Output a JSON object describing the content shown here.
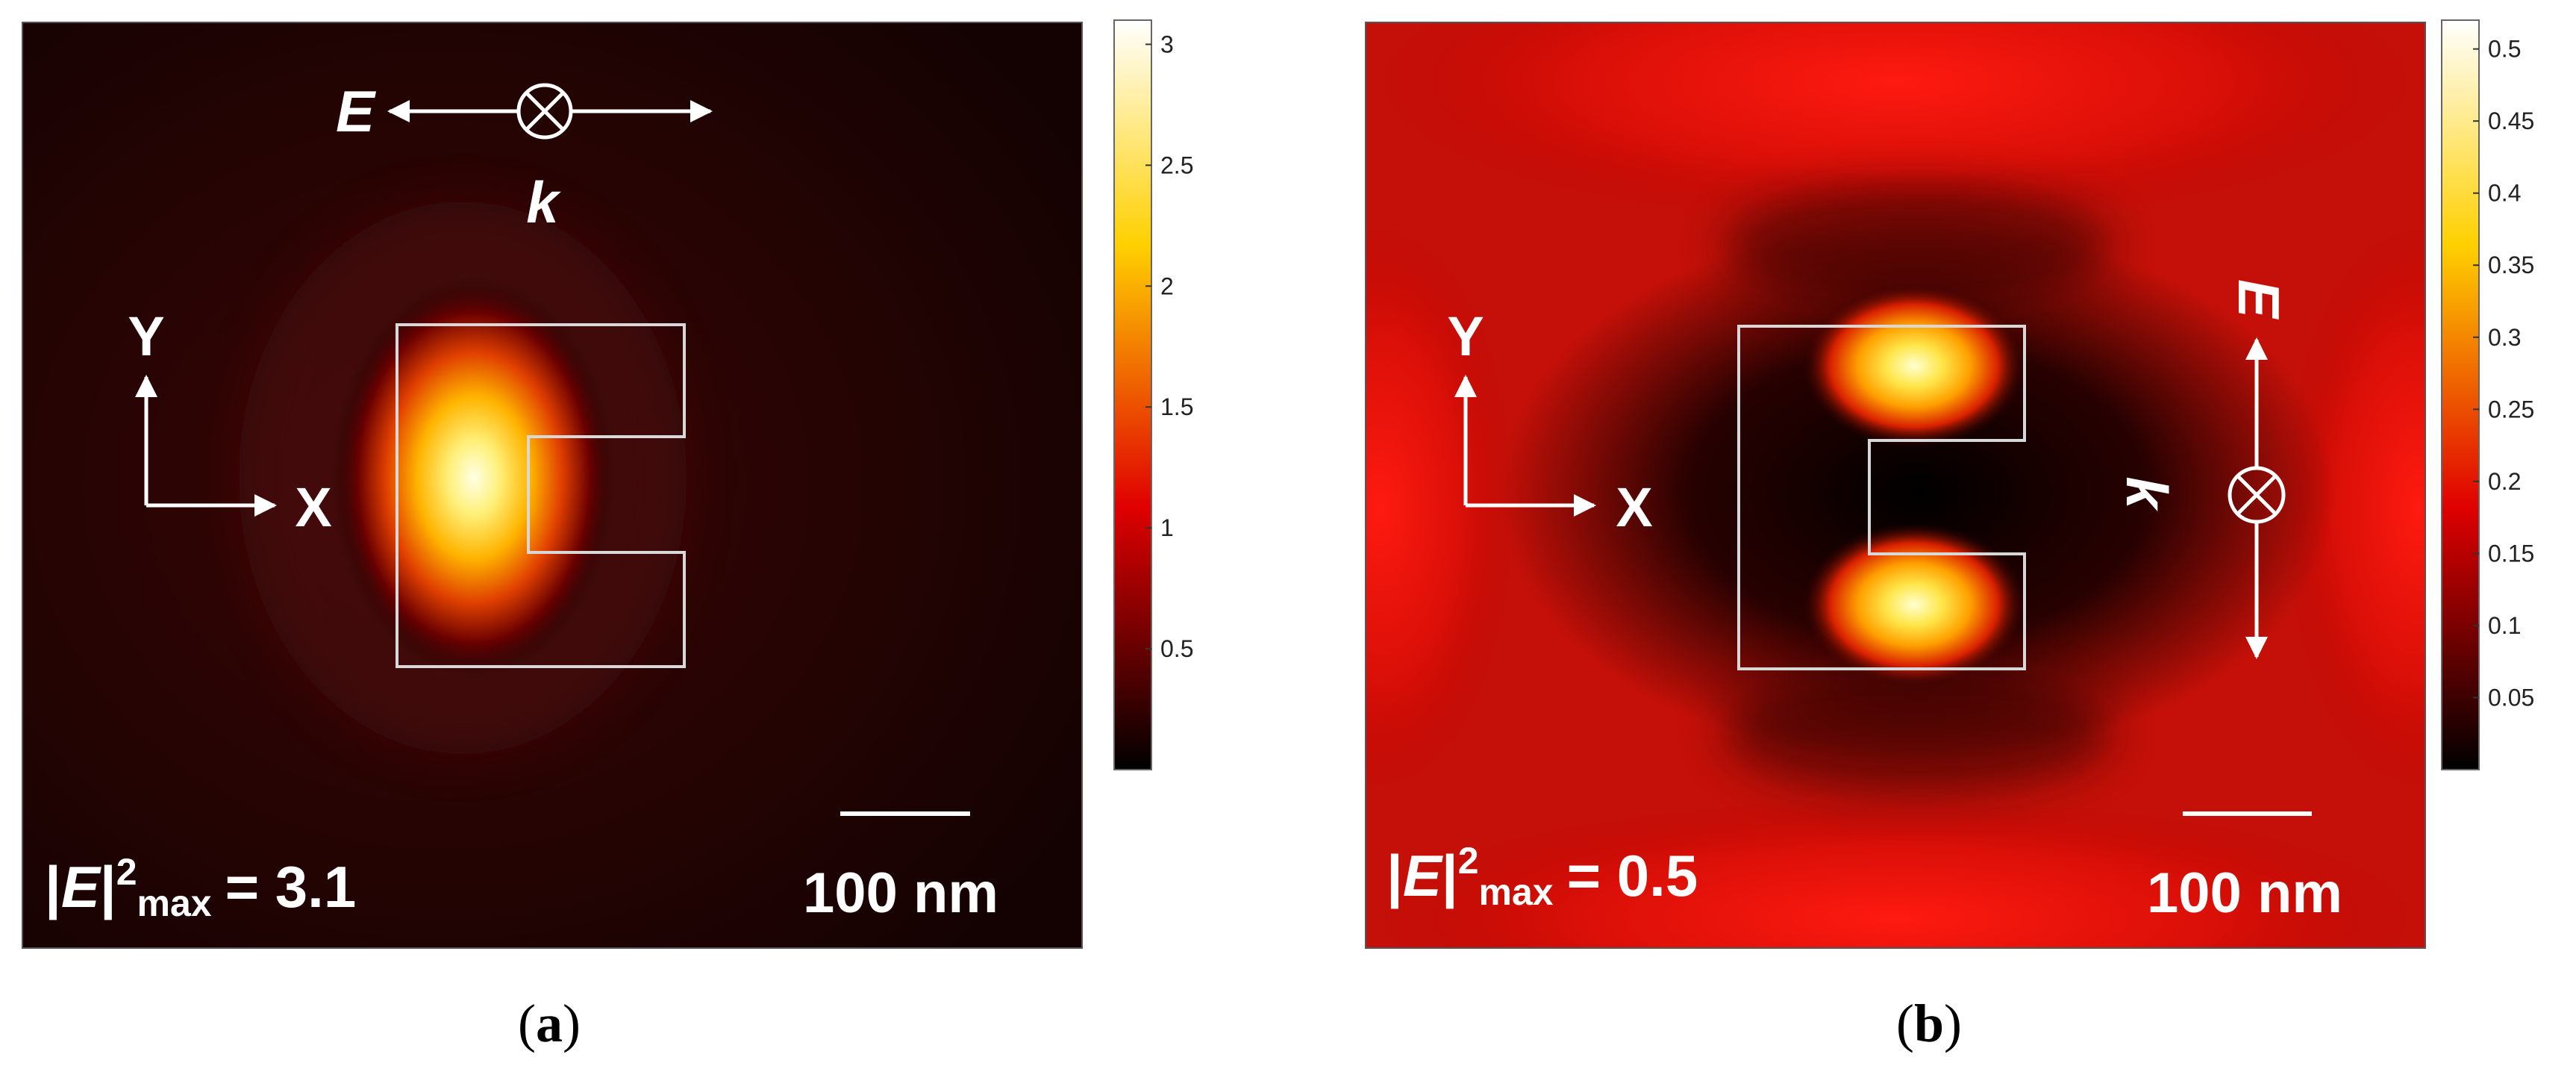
{
  "chart_data": [
    {
      "type": "heatmap",
      "panel_label_open": "(",
      "panel_label_letter": "a",
      "panel_label_close": ")",
      "field_symbol": "E",
      "field_exponent": "2",
      "field_subscript": "max",
      "max_equals": "= 3.1",
      "max_value": 3.1,
      "scale_bar_label": "100 nm",
      "scale_bar_length_nm": 100,
      "polarization_E": "E",
      "wavevector_k": "k",
      "polarization_direction": "horizontal",
      "axis_x_label": "X",
      "axis_y_label": "Y",
      "colorbar": {
        "range": [
          0,
          3.1
        ],
        "ticks": [
          0.5,
          1,
          1.5,
          2,
          2.5,
          3
        ],
        "tick_labels": [
          "0.5",
          "1",
          "1.5",
          "2",
          "2.5",
          "3"
        ]
      },
      "hotspots": [
        {
          "location": "left inner edge of structure",
          "value": 3.1
        }
      ]
    },
    {
      "type": "heatmap",
      "panel_label_open": "(",
      "panel_label_letter": "b",
      "panel_label_close": ")",
      "field_symbol": "E",
      "field_exponent": "2",
      "field_subscript": "max",
      "max_equals": "= 0.5",
      "max_value": 0.5,
      "scale_bar_label": "100 nm",
      "scale_bar_length_nm": 100,
      "polarization_E": "E",
      "wavevector_k": "k",
      "polarization_direction": "vertical",
      "axis_x_label": "X",
      "axis_y_label": "Y",
      "colorbar": {
        "range": [
          0,
          0.52
        ],
        "ticks": [
          0.05,
          0.1,
          0.15,
          0.2,
          0.25,
          0.3,
          0.35,
          0.4,
          0.45,
          0.5
        ],
        "tick_labels": [
          "0.05",
          "0.1",
          "0.15",
          "0.2",
          "0.25",
          "0.3",
          "0.35",
          "0.4",
          "0.45",
          "0.5"
        ]
      },
      "hotspots": [
        {
          "location": "upper inner arm of structure",
          "value": 0.5
        },
        {
          "location": "lower inner arm of structure",
          "value": 0.48
        }
      ]
    }
  ]
}
